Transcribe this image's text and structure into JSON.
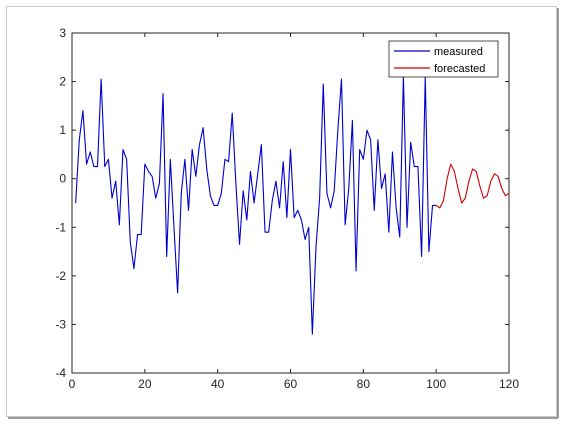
{
  "chart_data": {
    "type": "line",
    "title": "",
    "xlabel": "",
    "ylabel": "",
    "xlim": [
      0,
      120
    ],
    "ylim": [
      -4,
      3
    ],
    "xticks": [
      0,
      20,
      40,
      60,
      80,
      100,
      120
    ],
    "yticks": [
      3,
      2,
      1,
      0,
      -1,
      -2,
      -3,
      -4
    ],
    "grid": false,
    "legend_position": "top-right",
    "series": [
      {
        "name": "measured",
        "color": "#0000cc",
        "x": [
          1,
          2,
          3,
          4,
          5,
          6,
          7,
          8,
          9,
          10,
          11,
          12,
          13,
          14,
          15,
          16,
          17,
          18,
          19,
          20,
          21,
          22,
          23,
          24,
          25,
          26,
          27,
          28,
          29,
          30,
          31,
          32,
          33,
          34,
          35,
          36,
          37,
          38,
          39,
          40,
          41,
          42,
          43,
          44,
          45,
          46,
          47,
          48,
          49,
          50,
          51,
          52,
          53,
          54,
          55,
          56,
          57,
          58,
          59,
          60,
          61,
          62,
          63,
          64,
          65,
          66,
          67,
          68,
          69,
          70,
          71,
          72,
          73,
          74,
          75,
          76,
          77,
          78,
          79,
          80,
          81,
          82,
          83,
          84,
          85,
          86,
          87,
          88,
          89,
          90,
          91,
          92,
          93,
          94,
          95,
          96,
          97,
          98,
          99,
          100
        ],
        "values": [
          -0.5,
          0.8,
          1.4,
          0.3,
          0.55,
          0.25,
          0.25,
          2.05,
          0.25,
          0.4,
          -0.4,
          -0.05,
          -0.95,
          0.6,
          0.4,
          -1.3,
          -1.85,
          -1.15,
          -1.15,
          0.3,
          0.15,
          0.05,
          -0.4,
          -0.1,
          1.75,
          -1.6,
          0.4,
          -1.0,
          -2.35,
          -0.3,
          0.4,
          -0.65,
          0.6,
          0.05,
          0.7,
          1.05,
          0.2,
          -0.35,
          -0.55,
          -0.55,
          -0.3,
          0.4,
          0.35,
          1.35,
          -0.1,
          -1.35,
          -0.25,
          -0.85,
          0.15,
          -0.5,
          0.1,
          0.7,
          -1.1,
          -1.1,
          -0.45,
          -0.05,
          -0.6,
          0.35,
          -0.8,
          0.6,
          -0.8,
          -0.65,
          -0.85,
          -1.25,
          -1.0,
          -3.2,
          -1.4,
          -0.4,
          1.95,
          -0.3,
          -0.6,
          -0.25,
          1.0,
          2.05,
          -0.95,
          -0.2,
          1.2,
          -1.9,
          0.6,
          0.4,
          1.0,
          0.8,
          -0.65,
          0.8,
          -0.2,
          0.1,
          -1.1,
          0.55,
          -0.6,
          -1.2,
          2.1,
          -1.0,
          0.75,
          0.25,
          0.25,
          -1.6,
          2.1,
          -1.5,
          -0.55,
          -0.55
        ]
      },
      {
        "name": "forecasted",
        "color": "#cc0000",
        "x": [
          100,
          101,
          102,
          103,
          104,
          105,
          106,
          107,
          108,
          109,
          110,
          111,
          112,
          113,
          114,
          115,
          116,
          117,
          118,
          119,
          120
        ],
        "values": [
          -0.55,
          -0.6,
          -0.45,
          0.0,
          0.3,
          0.15,
          -0.2,
          -0.5,
          -0.4,
          -0.05,
          0.2,
          0.15,
          -0.15,
          -0.4,
          -0.35,
          -0.05,
          0.1,
          0.05,
          -0.2,
          -0.35,
          -0.3
        ]
      }
    ]
  }
}
